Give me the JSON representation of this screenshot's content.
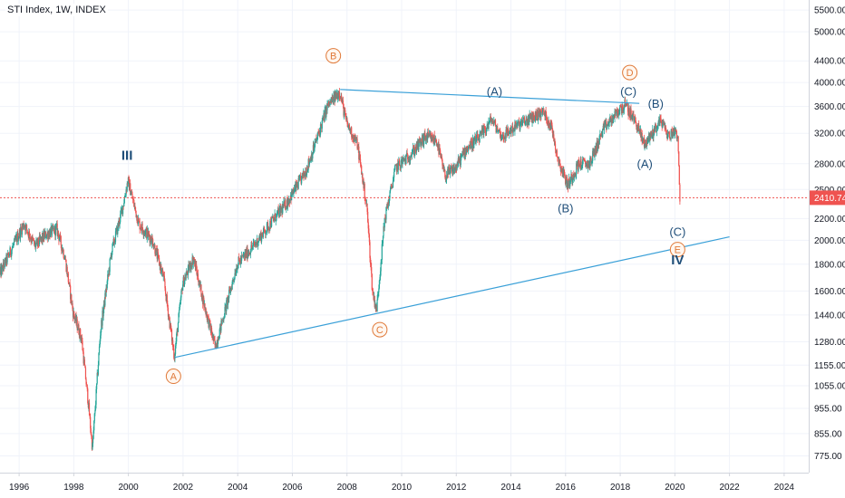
{
  "title": "STI Index, 1W, INDEX",
  "colors": {
    "up": "#26a69a",
    "down": "#ef5350",
    "trendline": "#3aa0d8",
    "circle_label": "#e07a3a",
    "wave_label": "#1f4e79",
    "price_line": "#ef5350",
    "price_badge": "#ef5350",
    "grid": "#f0f3fa",
    "axis": "#d1d4dc"
  },
  "chart_data": {
    "type": "candlestick",
    "scale": "log",
    "title": "STI Index, 1W, INDEX",
    "x_ticks": [
      "1996",
      "1998",
      "2000",
      "2002",
      "2004",
      "2006",
      "2008",
      "2010",
      "2012",
      "2014",
      "2016",
      "2018",
      "2020",
      "2022",
      "2024"
    ],
    "y_ticks": [
      775,
      855,
      955,
      1055,
      1155,
      1280,
      1440,
      1600,
      1800,
      2000,
      2200,
      2500,
      2800,
      3200,
      3600,
      4000,
      4400,
      5000,
      5500
    ],
    "y_tick_labels": [
      "775.00",
      "855.00",
      "955.00",
      "1055.00",
      "1155.00",
      "1280.00",
      "1440.00",
      "1600.00",
      "1800.00",
      "2000.00",
      "2200.00",
      "2500.00",
      "2800.00",
      "3200.00",
      "3600.00",
      "4000.00",
      "4400.00",
      "5000.00",
      "5500.00"
    ],
    "xlim": [
      1995.3,
      2024.9
    ],
    "ylim": [
      720,
      5750
    ],
    "last_price": 2410.74,
    "last_price_label": "2410.74",
    "anchors": [
      [
        1995.3,
        1720
      ],
      [
        1995.8,
        1950
      ],
      [
        1996.2,
        2150
      ],
      [
        1996.6,
        1950
      ],
      [
        1997.0,
        2050
      ],
      [
        1997.4,
        2100
      ],
      [
        1997.7,
        1850
      ],
      [
        1998.0,
        1450
      ],
      [
        1998.3,
        1300
      ],
      [
        1998.55,
        980
      ],
      [
        1998.7,
        800
      ],
      [
        1999.0,
        1350
      ],
      [
        1999.4,
        1900
      ],
      [
        1999.8,
        2300
      ],
      [
        2000.0,
        2600
      ],
      [
        2000.4,
        2150
      ],
      [
        2000.9,
        2000
      ],
      [
        2001.3,
        1700
      ],
      [
        2001.7,
        1200
      ],
      [
        2002.0,
        1650
      ],
      [
        2002.4,
        1850
      ],
      [
        2002.8,
        1500
      ],
      [
        2003.2,
        1250
      ],
      [
        2003.6,
        1500
      ],
      [
        2004.0,
        1800
      ],
      [
        2004.6,
        1950
      ],
      [
        2005.2,
        2150
      ],
      [
        2005.8,
        2350
      ],
      [
        2006.5,
        2700
      ],
      [
        2006.9,
        3100
      ],
      [
        2007.3,
        3600
      ],
      [
        2007.75,
        3850
      ],
      [
        2008.0,
        3350
      ],
      [
        2008.4,
        3050
      ],
      [
        2008.75,
        2300
      ],
      [
        2008.95,
        1600
      ],
      [
        2009.1,
        1470
      ],
      [
        2009.4,
        2200
      ],
      [
        2009.8,
        2750
      ],
      [
        2010.3,
        2900
      ],
      [
        2010.9,
        3150
      ],
      [
        2011.3,
        3100
      ],
      [
        2011.6,
        2650
      ],
      [
        2012.0,
        2750
      ],
      [
        2012.4,
        3000
      ],
      [
        2012.9,
        3150
      ],
      [
        2013.3,
        3400
      ],
      [
        2013.7,
        3150
      ],
      [
        2014.2,
        3300
      ],
      [
        2015.2,
        3520
      ],
      [
        2015.5,
        3300
      ],
      [
        2015.75,
        2850
      ],
      [
        2016.1,
        2550
      ],
      [
        2016.5,
        2800
      ],
      [
        2016.9,
        2800
      ],
      [
        2017.4,
        3250
      ],
      [
        2018.0,
        3550
      ],
      [
        2018.2,
        3620
      ],
      [
        2018.6,
        3350
      ],
      [
        2018.9,
        3050
      ],
      [
        2019.2,
        3200
      ],
      [
        2019.5,
        3400
      ],
      [
        2019.8,
        3150
      ],
      [
        2020.0,
        3250
      ],
      [
        2020.12,
        3180
      ],
      [
        2020.16,
        2900
      ],
      [
        2020.19,
        2410.74
      ]
    ],
    "trendlines": [
      {
        "from": [
          2007.75,
          3880
        ],
        "to": [
          2018.7,
          3650
        ]
      },
      {
        "from": [
          2001.7,
          1195
        ],
        "to": [
          2022.0,
          2030
        ]
      }
    ],
    "circled_labels": [
      {
        "text": "A",
        "x": 2001.65,
        "y": 1100
      },
      {
        "text": "B",
        "x": 2007.5,
        "y": 4500
      },
      {
        "text": "C",
        "x": 2009.2,
        "y": 1350
      },
      {
        "text": "D",
        "x": 2018.35,
        "y": 4180
      },
      {
        "text": "E",
        "x": 2020.1,
        "y": 1920
      }
    ],
    "wave_labels": [
      {
        "text": "III",
        "x": 1999.95,
        "y": 2850,
        "bold": true
      },
      {
        "text": "IV",
        "x": 2020.1,
        "y": 1800,
        "bold": true
      },
      {
        "text": "(A)",
        "x": 2013.4,
        "y": 3780
      },
      {
        "text": "(C)",
        "x": 2018.3,
        "y": 3780
      },
      {
        "text": "(B)",
        "x": 2019.3,
        "y": 3580
      },
      {
        "text": "(A)",
        "x": 2018.9,
        "y": 2750
      },
      {
        "text": "(B)",
        "x": 2016.0,
        "y": 2260
      },
      {
        "text": "(C)",
        "x": 2020.1,
        "y": 2040
      }
    ]
  }
}
